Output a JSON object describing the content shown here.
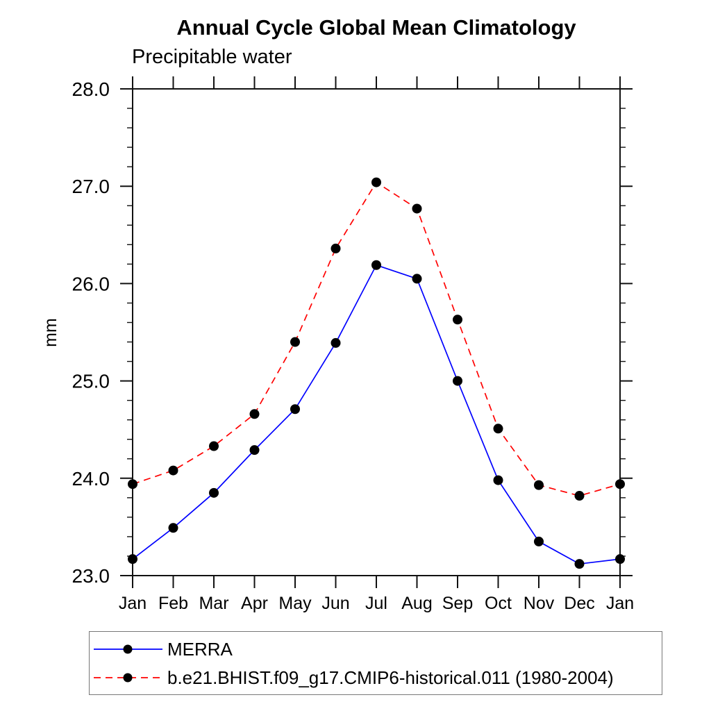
{
  "chart_data": {
    "type": "line",
    "title": "Annual Cycle Global Mean Climatology",
    "subtitle": "Precipitable water",
    "ylabel": "mm",
    "categories": [
      "Jan",
      "Feb",
      "Mar",
      "Apr",
      "May",
      "Jun",
      "Jul",
      "Aug",
      "Sep",
      "Oct",
      "Nov",
      "Dec",
      "Jan"
    ],
    "ylim": [
      23.0,
      28.0
    ],
    "ytick_interval": 1.0,
    "ytick_minor_interval": 0.2,
    "ytick_labels": [
      "23.0",
      "24.0",
      "25.0",
      "26.0",
      "27.0",
      "28.0"
    ],
    "grid": false,
    "legend_position": "bottom-left-box",
    "marker": "filled-circle",
    "marker_color": "#000000",
    "series": [
      {
        "name": "MERRA",
        "color": "#0000ff",
        "line_style": "solid",
        "values": [
          23.17,
          23.49,
          23.85,
          24.29,
          24.71,
          25.39,
          26.19,
          26.05,
          25.0,
          23.98,
          23.35,
          23.12,
          23.17
        ]
      },
      {
        "name": "b.e21.BHIST.f09_g17.CMIP6-historical.011 (1980-2004)",
        "color": "#ff0000",
        "line_style": "dashed",
        "values": [
          23.94,
          24.08,
          24.33,
          24.66,
          25.4,
          26.36,
          27.04,
          26.77,
          25.63,
          24.51,
          23.93,
          23.82,
          23.94
        ]
      }
    ]
  }
}
